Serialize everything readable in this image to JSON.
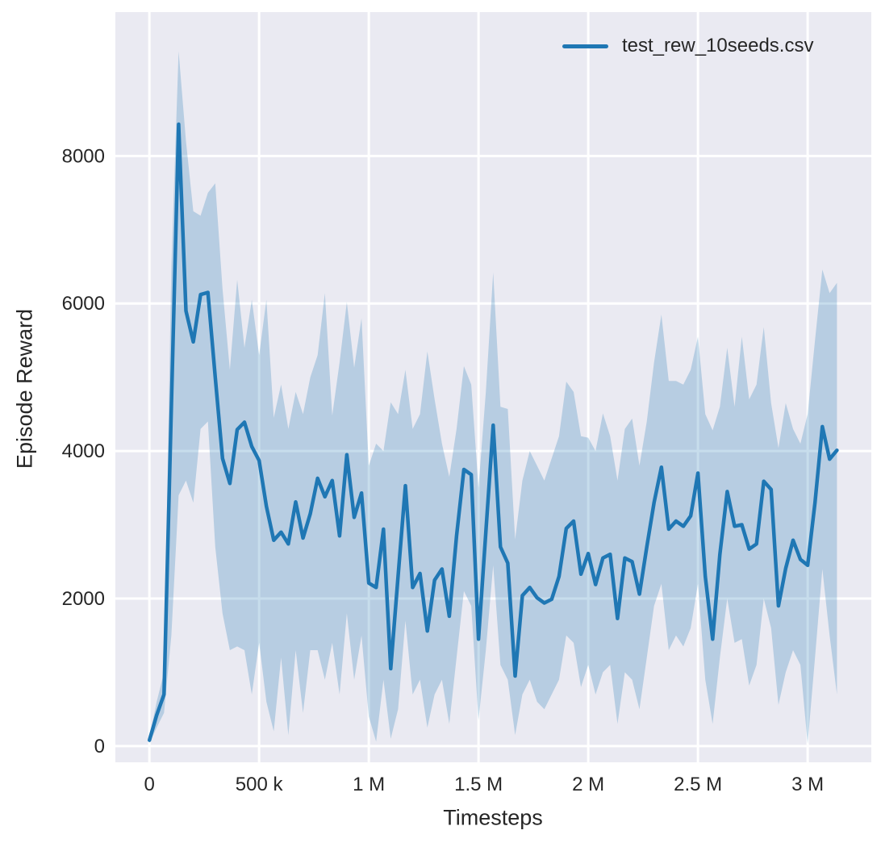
{
  "chart_data": {
    "type": "line",
    "title": "",
    "xlabel": "Timesteps",
    "ylabel": "Episode Reward",
    "grid": true,
    "legend_position": "upper right",
    "background": "#eaeaf2",
    "grid_color": "#ffffff",
    "text_color": "#262626",
    "xlim": [
      -155000,
      3290000
    ],
    "ylim": [
      -220,
      9950
    ],
    "xticks": {
      "values": [
        0,
        500000,
        1000000,
        1500000,
        2000000,
        2500000,
        3000000
      ],
      "labels": [
        "0",
        "500 k",
        "1 M",
        "1.5 M",
        "2 M",
        "2.5 M",
        "3 M"
      ]
    },
    "yticks": {
      "values": [
        0,
        2000,
        4000,
        6000,
        8000
      ],
      "labels": [
        "0",
        "2000",
        "4000",
        "6000",
        "8000"
      ]
    },
    "x": [
      0,
      33333,
      66667,
      100000,
      133333,
      166667,
      200000,
      233333,
      266667,
      300000,
      333333,
      366667,
      400000,
      433333,
      466667,
      500000,
      533333,
      566667,
      600000,
      633333,
      666667,
      700000,
      733333,
      766667,
      800000,
      833333,
      866667,
      900000,
      933333,
      966667,
      1000000,
      1033333,
      1066667,
      1100000,
      1133333,
      1166667,
      1200000,
      1233333,
      1266667,
      1300000,
      1333333,
      1366667,
      1400000,
      1433333,
      1466667,
      1500000,
      1533333,
      1566667,
      1600000,
      1633333,
      1666667,
      1700000,
      1733333,
      1766667,
      1800000,
      1833333,
      1866667,
      1900000,
      1933333,
      1966667,
      2000000,
      2033333,
      2066667,
      2100000,
      2133333,
      2166667,
      2200000,
      2233333,
      2266667,
      2300000,
      2333333,
      2366667,
      2400000,
      2433333,
      2466667,
      2500000,
      2533333,
      2566667,
      2600000,
      2633333,
      2666667,
      2700000,
      2733333,
      2766667,
      2800000,
      2833333,
      2866667,
      2900000,
      2933333,
      2966667,
      3000000,
      3033333,
      3066667,
      3100000,
      3133333
    ],
    "series": [
      {
        "name": "test_rew_10seeds.csv",
        "color": "#1f77b4",
        "values": [
          80,
          420,
          700,
          4600,
          8430,
          5900,
          5480,
          6120,
          6150,
          5000,
          3900,
          3560,
          4290,
          4390,
          4060,
          3870,
          3250,
          2790,
          2900,
          2740,
          3310,
          2820,
          3150,
          3630,
          3380,
          3600,
          2850,
          3950,
          3100,
          3430,
          2210,
          2150,
          2940,
          1050,
          2300,
          3530,
          2150,
          2340,
          1560,
          2250,
          2400,
          1760,
          2850,
          3750,
          3680,
          1450,
          2900,
          4350,
          2700,
          2480,
          950,
          2040,
          2150,
          2010,
          1940,
          1990,
          2300,
          2950,
          3050,
          2330,
          2610,
          2190,
          2550,
          2600,
          1730,
          2550,
          2500,
          2060,
          2700,
          3300,
          3780,
          2940,
          3050,
          2980,
          3120,
          3700,
          2300,
          1450,
          2600,
          3450,
          2980,
          3000,
          2670,
          2740,
          3590,
          3480,
          1900,
          2410,
          2790,
          2530,
          2450,
          3300,
          4330,
          3890,
          4010
        ]
      }
    ],
    "band": {
      "series": "test_rew_10seeds.csv",
      "fill": "rgba(31,119,180,0.25)",
      "upper": [
        120,
        600,
        1000,
        6500,
        9420,
        8200,
        7250,
        7190,
        7500,
        7630,
        6200,
        5100,
        6320,
        5400,
        6050,
        5300,
        6050,
        4450,
        4900,
        4300,
        4800,
        4500,
        5000,
        5300,
        6140,
        4480,
        5200,
        6020,
        5130,
        5800,
        3800,
        4100,
        4000,
        4660,
        4500,
        5100,
        4300,
        4500,
        5350,
        4700,
        4100,
        3650,
        4300,
        5150,
        4900,
        3500,
        4800,
        6420,
        4600,
        4570,
        2800,
        3600,
        4000,
        3800,
        3600,
        3900,
        4200,
        4940,
        4800,
        4200,
        4180,
        4000,
        4510,
        4200,
        3600,
        4300,
        4440,
        3800,
        4400,
        5200,
        5850,
        4950,
        4950,
        4900,
        5100,
        5550,
        4500,
        4280,
        4600,
        5400,
        4600,
        5550,
        4700,
        4900,
        5680,
        4650,
        4040,
        4650,
        4300,
        4100,
        4500,
        5500,
        6460,
        6140,
        6280
      ],
      "lower": [
        40,
        250,
        450,
        1500,
        3400,
        3600,
        3300,
        4300,
        4400,
        2700,
        1800,
        1300,
        1350,
        1300,
        700,
        1400,
        600,
        200,
        1200,
        150,
        1300,
        450,
        1300,
        1300,
        900,
        1400,
        700,
        1800,
        900,
        1500,
        400,
        60,
        900,
        100,
        500,
        1700,
        700,
        900,
        250,
        700,
        900,
        300,
        1200,
        2100,
        1900,
        350,
        1300,
        2450,
        1100,
        900,
        150,
        700,
        900,
        600,
        500,
        700,
        900,
        1500,
        1400,
        800,
        1100,
        700,
        1000,
        1100,
        300,
        1000,
        900,
        500,
        1200,
        1900,
        2200,
        1300,
        1500,
        1350,
        1600,
        2200,
        900,
        300,
        1200,
        2000,
        1400,
        1450,
        820,
        1100,
        2000,
        1600,
        560,
        1000,
        1300,
        1100,
        30,
        1200,
        2400,
        1500,
        700
      ]
    }
  }
}
